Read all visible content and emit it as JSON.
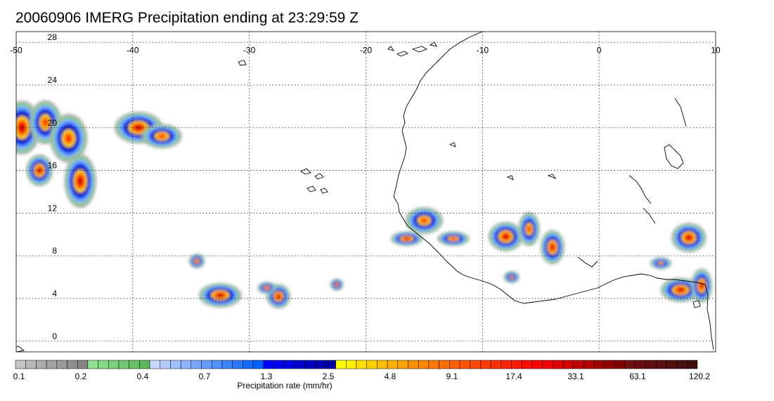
{
  "title": "20060906 IMERG Precipitation ending at 23:29:59 Z",
  "map": {
    "lon_range": [
      -50,
      10
    ],
    "lat_range": [
      -1,
      29
    ],
    "lon_ticks": [
      "-50",
      "-40",
      "-30",
      "-20",
      "-10",
      "0",
      "10"
    ],
    "lon_values": [
      -50,
      -40,
      -30,
      -20,
      -10,
      0,
      10
    ],
    "lat_ticks": [
      "28",
      "24",
      "20",
      "16",
      "12",
      "8",
      "4",
      "0"
    ],
    "lat_values": [
      28,
      24,
      20,
      16,
      12,
      8,
      4,
      0
    ],
    "grid": "dotted"
  },
  "colorbar": {
    "label": "Precipitation rate (mm/hr)",
    "tick_labels": [
      "0.1",
      "0.2",
      "0.4",
      "0.7",
      "1.3",
      "2.5",
      "4.8",
      "9.1",
      "17.4",
      "33.1",
      "63.1",
      "120.2"
    ],
    "colors": [
      "#c4c4c4",
      "#b8b8b8",
      "#adadad",
      "#a3a3a3",
      "#999999",
      "#8f8f8f",
      "#858585",
      "#8fe08f",
      "#85d885",
      "#7bd07b",
      "#71c871",
      "#67c067",
      "#5db85d",
      "#c8d8ff",
      "#b4ccff",
      "#a0c0ff",
      "#8cb4ff",
      "#78a8ff",
      "#649cff",
      "#5090ff",
      "#3c84ff",
      "#2878ff",
      "#146cff",
      "#0060ff",
      "#0000ff",
      "#0000f0",
      "#0000e0",
      "#0000d0",
      "#0000c0",
      "#0000b0",
      "#0000a0",
      "#ffff00",
      "#ffef00",
      "#ffdf00",
      "#ffcf00",
      "#ffbf00",
      "#ffaf00",
      "#ff9f00",
      "#ff9000",
      "#ff8400",
      "#ff7800",
      "#ff6c00",
      "#ff6000",
      "#ff5400",
      "#ff4800",
      "#ff3c00",
      "#ff3000",
      "#ff2400",
      "#ff1800",
      "#ff0c00",
      "#ff0000",
      "#f00000",
      "#e00000",
      "#d00000",
      "#c00000",
      "#b00000",
      "#a00000",
      "#900000",
      "#800000",
      "#701010",
      "#681010",
      "#601010",
      "#581010",
      "#501010",
      "#481010",
      "#401010"
    ]
  },
  "precip_cells": [
    {
      "lon": -49.5,
      "lat": 20.0,
      "rx": 1.4,
      "ry": 2.2,
      "peak": 56
    },
    {
      "lon": -47.5,
      "lat": 20.5,
      "rx": 1.2,
      "ry": 1.8,
      "peak": 30
    },
    {
      "lon": -45.5,
      "lat": 19.0,
      "rx": 1.4,
      "ry": 2.0,
      "peak": 28
    },
    {
      "lon": -44.5,
      "lat": 15.0,
      "rx": 1.2,
      "ry": 2.2,
      "peak": 48
    },
    {
      "lon": -48.0,
      "lat": 16.0,
      "rx": 1.0,
      "ry": 1.3,
      "peak": 36
    },
    {
      "lon": -39.5,
      "lat": 20.0,
      "rx": 1.8,
      "ry": 1.3,
      "peak": 54
    },
    {
      "lon": -37.5,
      "lat": 19.2,
      "rx": 1.5,
      "ry": 1.0,
      "peak": 22
    },
    {
      "lon": -32.5,
      "lat": 4.3,
      "rx": 1.6,
      "ry": 1.0,
      "peak": 40
    },
    {
      "lon": -34.5,
      "lat": 7.5,
      "rx": 0.6,
      "ry": 0.6,
      "peak": 20
    },
    {
      "lon": -27.5,
      "lat": 4.2,
      "rx": 0.9,
      "ry": 1.0,
      "peak": 38
    },
    {
      "lon": -28.5,
      "lat": 5.0,
      "rx": 0.7,
      "ry": 0.5,
      "peak": 24
    },
    {
      "lon": -22.5,
      "lat": 5.3,
      "rx": 0.5,
      "ry": 0.5,
      "peak": 26
    },
    {
      "lon": -15.0,
      "lat": 11.3,
      "rx": 1.4,
      "ry": 1.1,
      "peak": 30
    },
    {
      "lon": -16.5,
      "lat": 9.6,
      "rx": 1.2,
      "ry": 0.6,
      "peak": 36
    },
    {
      "lon": -12.5,
      "lat": 9.6,
      "rx": 1.2,
      "ry": 0.6,
      "peak": 22
    },
    {
      "lon": -8.0,
      "lat": 9.8,
      "rx": 1.3,
      "ry": 1.2,
      "peak": 34
    },
    {
      "lon": -6.0,
      "lat": 10.5,
      "rx": 0.8,
      "ry": 1.4,
      "peak": 30
    },
    {
      "lon": -4.0,
      "lat": 8.8,
      "rx": 0.9,
      "ry": 1.4,
      "peak": 40
    },
    {
      "lon": -7.5,
      "lat": 6.0,
      "rx": 0.6,
      "ry": 0.5,
      "peak": 14
    },
    {
      "lon": 7.7,
      "lat": 9.7,
      "rx": 1.3,
      "ry": 1.2,
      "peak": 38
    },
    {
      "lon": 7.0,
      "lat": 4.8,
      "rx": 1.5,
      "ry": 1.0,
      "peak": 44
    },
    {
      "lon": 8.8,
      "lat": 5.2,
      "rx": 0.8,
      "ry": 1.4,
      "peak": 36
    },
    {
      "lon": 5.3,
      "lat": 7.3,
      "rx": 0.8,
      "ry": 0.5,
      "peak": 12
    }
  ]
}
